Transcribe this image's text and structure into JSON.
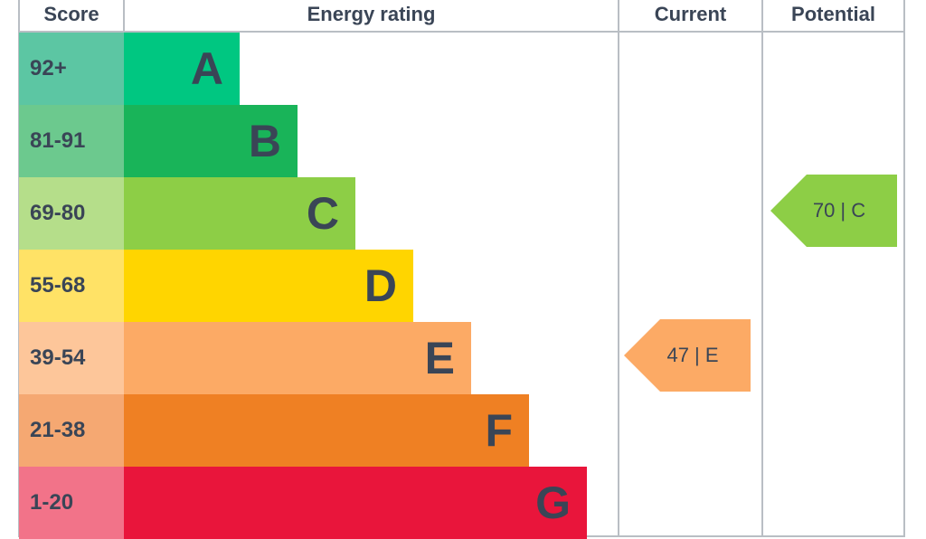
{
  "headers": {
    "score": "Score",
    "rating": "Energy rating",
    "current": "Current",
    "potential": "Potential"
  },
  "bands": [
    {
      "score": "92+",
      "letter": "A",
      "color": "#00c781",
      "score_bg": "#5cc6a3",
      "width_frac": 0.2
    },
    {
      "score": "81-91",
      "letter": "B",
      "color": "#19b459",
      "score_bg": "#6cc98e",
      "width_frac": 0.3
    },
    {
      "score": "69-80",
      "letter": "C",
      "color": "#8dce46",
      "score_bg": "#b5de8a",
      "width_frac": 0.4
    },
    {
      "score": "55-68",
      "letter": "D",
      "color": "#ffd500",
      "score_bg": "#ffe266",
      "width_frac": 0.5
    },
    {
      "score": "39-54",
      "letter": "E",
      "color": "#fcaa65",
      "score_bg": "#fdc69a",
      "width_frac": 0.6
    },
    {
      "score": "21-38",
      "letter": "F",
      "color": "#ef8023",
      "score_bg": "#f5a872",
      "width_frac": 0.7
    },
    {
      "score": "1-20",
      "letter": "G",
      "color": "#e9153b",
      "score_bg": "#f27389",
      "width_frac": 0.8
    }
  ],
  "current": {
    "label": "47 | E",
    "value": 47,
    "band": "E",
    "color": "#fcaa65"
  },
  "potential": {
    "label": "70 | C",
    "value": 70,
    "band": "C",
    "color": "#8dce46"
  },
  "chart_data": {
    "type": "bar",
    "categories": [
      "A",
      "B",
      "C",
      "D",
      "E",
      "F",
      "G"
    ],
    "score_ranges": [
      "92+",
      "81-91",
      "69-80",
      "55-68",
      "39-54",
      "21-38",
      "1-20"
    ],
    "current": {
      "value": 47,
      "band": "E"
    },
    "potential": {
      "value": 70,
      "band": "C"
    }
  }
}
